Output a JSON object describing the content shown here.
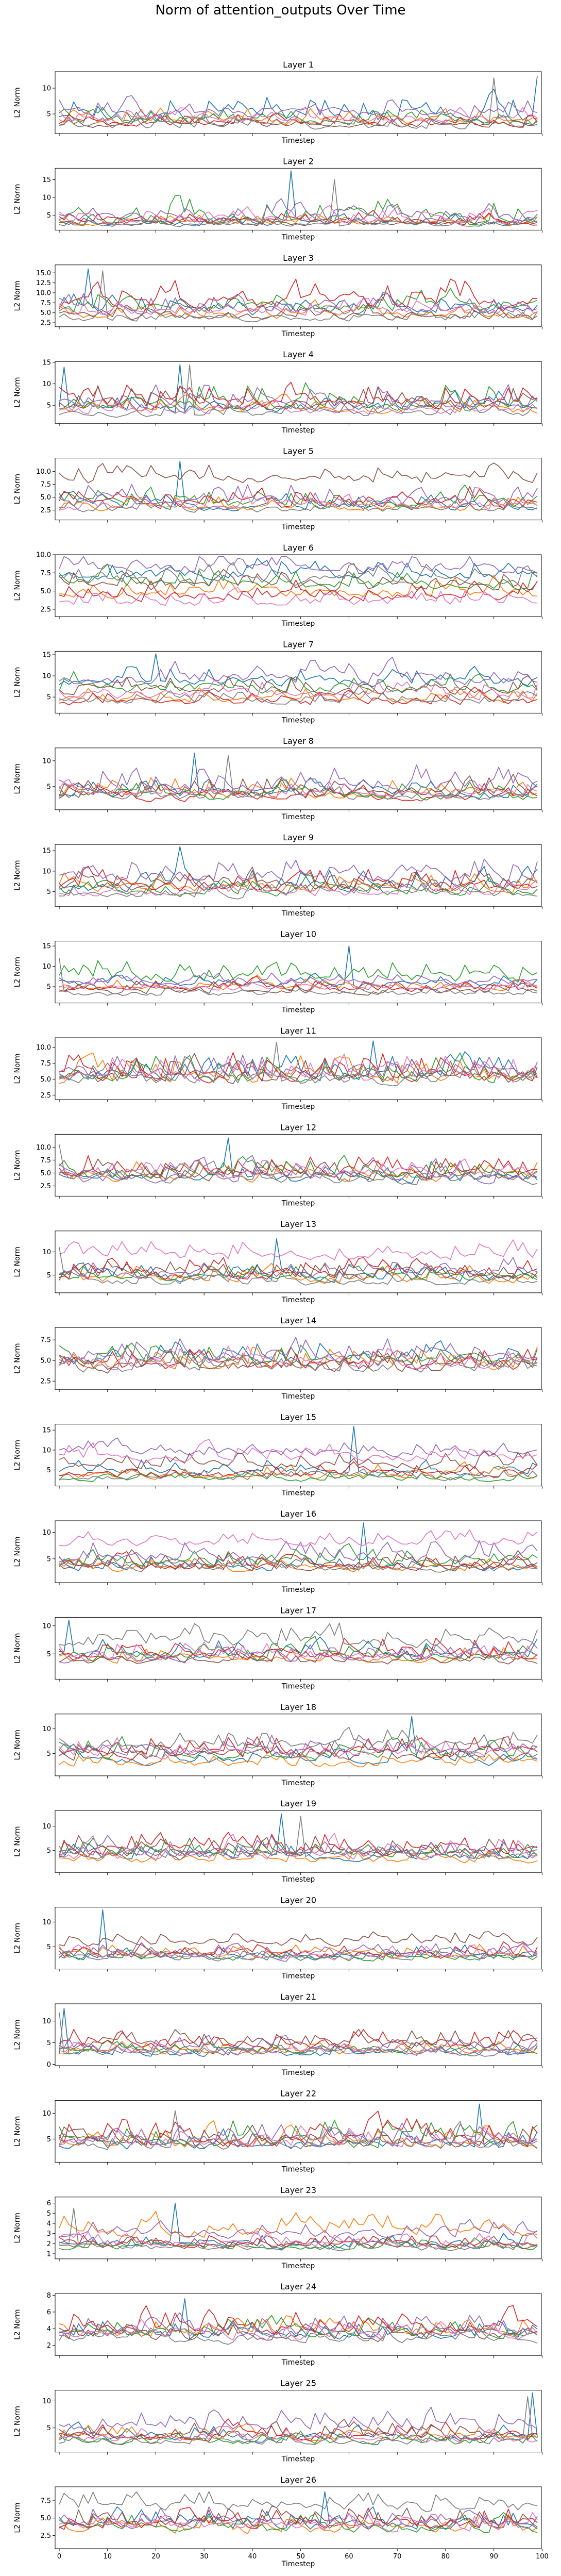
{
  "figure": {
    "title": "Norm of attention_outputs Over Time"
  },
  "palette": [
    "#1f77b4",
    "#ff7f0e",
    "#2ca02c",
    "#d62728",
    "#9467bd",
    "#8c564b",
    "#e377c2",
    "#7f7f7f"
  ],
  "chart_data": [
    {
      "type": "line",
      "title": "Layer 1",
      "xlabel": "Timestep",
      "ylabel": "L2 Norm",
      "xlim": [
        0,
        99
      ],
      "ylim": [
        1.2,
        13.2
      ],
      "yticks": [
        5,
        10
      ],
      "grid": false,
      "legend": "none",
      "n_series": 8,
      "seed": 11,
      "bases": [
        4.3,
        3.5,
        3.6,
        3.1,
        5.1,
        2.8,
        3.9,
        2.5
      ],
      "amps": [
        4.8,
        2.6,
        2.5,
        2.2,
        3.2,
        1.6,
        2.4,
        2.2
      ],
      "spikes": [
        [
          99,
          12.4
        ],
        [
          90,
          12.0
        ]
      ]
    },
    {
      "type": "line",
      "title": "Layer 2",
      "xlabel": "Timestep",
      "ylabel": "L2 Norm",
      "xlim": [
        0,
        99
      ],
      "ylim": [
        0.8,
        18.2
      ],
      "yticks": [
        5,
        10,
        15
      ],
      "grid": false,
      "legend": "none",
      "n_series": 8,
      "seed": 23,
      "bases": [
        2.6,
        2.9,
        3.6,
        2.8,
        4.1,
        2.5,
        3.4,
        2.3
      ],
      "amps": [
        2.5,
        2.6,
        6.0,
        3.0,
        4.5,
        2.0,
        3.5,
        1.8
      ],
      "spikes": [
        [
          48,
          17.5
        ],
        [
          57,
          15.0
        ]
      ]
    },
    {
      "type": "line",
      "title": "Layer 3",
      "xlabel": "Timestep",
      "ylabel": "L2 Norm",
      "xlim": [
        0,
        99
      ],
      "ylim": [
        1.5,
        17.0
      ],
      "yticks": [
        2.5,
        5.0,
        7.5,
        10.0,
        12.5,
        15.0
      ],
      "grid": false,
      "legend": "none",
      "n_series": 8,
      "seed": 37,
      "bases": [
        5.2,
        4.4,
        6.1,
        7.3,
        5.5,
        4.0,
        5.0,
        3.4
      ],
      "amps": [
        4.5,
        3.5,
        5.0,
        6.0,
        4.5,
        3.5,
        3.5,
        2.5
      ],
      "spikes": [
        [
          6,
          16.0
        ],
        [
          9,
          15.5
        ]
      ]
    },
    {
      "type": "line",
      "title": "Layer 4",
      "xlabel": "Timestep",
      "ylabel": "L2 Norm",
      "xlim": [
        0,
        99
      ],
      "ylim": [
        0.8,
        15.2
      ],
      "yticks": [
        5,
        10,
        15
      ],
      "grid": false,
      "legend": "none",
      "n_series": 8,
      "seed": 41,
      "bases": [
        4.5,
        3.8,
        5.2,
        5.5,
        5.0,
        5.1,
        3.6,
        3.0
      ],
      "amps": [
        4.0,
        3.0,
        5.5,
        5.0,
        5.0,
        5.0,
        3.0,
        2.5
      ],
      "spikes": [
        [
          25,
          14.5
        ],
        [
          27,
          14.4
        ],
        [
          1,
          13.9
        ]
      ]
    },
    {
      "type": "line",
      "title": "Layer 5",
      "xlabel": "Timestep",
      "ylabel": "L2 Norm",
      "xlim": [
        0,
        99
      ],
      "ylim": [
        0.6,
        12.6
      ],
      "yticks": [
        2.5,
        5.0,
        7.5,
        10.0
      ],
      "grid": false,
      "legend": "none",
      "n_series": 8,
      "seed": 53,
      "bases": [
        3.1,
        3.0,
        3.7,
        3.8,
        4.0,
        8.2,
        3.2,
        2.5
      ],
      "amps": [
        2.5,
        2.8,
        3.5,
        3.5,
        3.8,
        3.2,
        2.5,
        2.0
      ],
      "spikes": [
        [
          25,
          12.0
        ]
      ]
    },
    {
      "type": "line",
      "title": "Layer 6",
      "xlabel": "Timestep",
      "ylabel": "L2 Norm",
      "xlim": [
        0,
        99
      ],
      "ylim": [
        1.5,
        10.0
      ],
      "yticks": [
        2.5,
        5.0,
        7.5,
        10.0
      ],
      "grid": false,
      "legend": "none",
      "n_series": 8,
      "seed": 67,
      "bases": [
        7.2,
        4.6,
        5.9,
        4.3,
        8.1,
        5.4,
        3.3,
        6.4
      ],
      "amps": [
        2.4,
        2.4,
        2.4,
        2.4,
        2.4,
        2.4,
        2.0,
        2.4
      ],
      "spikes": []
    },
    {
      "type": "line",
      "title": "Layer 7",
      "xlabel": "Timestep",
      "ylabel": "L2 Norm",
      "xlim": [
        0,
        99
      ],
      "ylim": [
        1.2,
        15.8
      ],
      "yticks": [
        5,
        10,
        15
      ],
      "grid": false,
      "legend": "none",
      "n_series": 8,
      "seed": 71,
      "bases": [
        8.5,
        4.3,
        7.0,
        3.8,
        9.0,
        6.5,
        5.5,
        4.0
      ],
      "amps": [
        4.0,
        3.0,
        4.0,
        3.0,
        4.5,
        4.0,
        4.0,
        2.5
      ],
      "spikes": [
        [
          20,
          15.2
        ]
      ]
    },
    {
      "type": "line",
      "title": "Layer 8",
      "xlabel": "Timestep",
      "ylabel": "L2 Norm",
      "xlim": [
        0,
        99
      ],
      "ylim": [
        0.5,
        12.5
      ],
      "yticks": [
        5,
        10
      ],
      "grid": false,
      "legend": "none",
      "n_series": 8,
      "seed": 83,
      "bases": [
        3.4,
        3.6,
        3.1,
        3.0,
        5.3,
        4.0,
        3.5,
        3.0
      ],
      "amps": [
        3.0,
        3.5,
        3.0,
        2.8,
        4.5,
        3.5,
        3.0,
        2.5
      ],
      "spikes": [
        [
          28,
          11.5
        ],
        [
          35,
          11.0
        ]
      ]
    },
    {
      "type": "line",
      "title": "Layer 9",
      "xlabel": "Timestep",
      "ylabel": "L2 Norm",
      "xlim": [
        0,
        99
      ],
      "ylim": [
        1.4,
        16.5
      ],
      "yticks": [
        5,
        10,
        15
      ],
      "grid": false,
      "legend": "none",
      "n_series": 8,
      "seed": 97,
      "bases": [
        6.1,
        5.9,
        5.0,
        6.2,
        8.6,
        6.0,
        4.5,
        4.2
      ],
      "amps": [
        4.5,
        4.0,
        4.0,
        5.0,
        5.0,
        4.5,
        3.0,
        3.0
      ],
      "spikes": [
        [
          25,
          16.0
        ]
      ]
    },
    {
      "type": "line",
      "title": "Layer 10",
      "xlabel": "Timestep",
      "ylabel": "L2 Norm",
      "xlim": [
        0,
        99
      ],
      "ylim": [
        1.0,
        16.2
      ],
      "yticks": [
        5,
        10,
        15
      ],
      "grid": false,
      "legend": "none",
      "n_series": 8,
      "seed": 101,
      "bases": [
        5.4,
        4.9,
        7.1,
        4.4,
        6.0,
        3.8,
        4.6,
        3.2
      ],
      "amps": [
        2.5,
        2.5,
        5.0,
        2.5,
        2.5,
        2.5,
        2.5,
        2.0
      ],
      "spikes": [
        [
          60,
          15.0
        ],
        [
          0,
          12.0
        ]
      ]
    },
    {
      "type": "line",
      "title": "Layer 11",
      "xlabel": "Timestep",
      "ylabel": "L2 Norm",
      "xlim": [
        0,
        99
      ],
      "ylim": [
        1.8,
        11.5
      ],
      "yticks": [
        2.5,
        5.0,
        7.5,
        10.0
      ],
      "grid": false,
      "legend": "none",
      "n_series": 8,
      "seed": 113,
      "bases": [
        5.4,
        5.1,
        5.3,
        5.4,
        6.0,
        5.0,
        5.3,
        4.7
      ],
      "amps": [
        3.5,
        3.5,
        3.5,
        4.0,
        3.5,
        3.5,
        3.5,
        3.0
      ],
      "spikes": [
        [
          65,
          11.0
        ],
        [
          45,
          10.8
        ]
      ]
    },
    {
      "type": "line",
      "title": "Layer 12",
      "xlabel": "Timestep",
      "ylabel": "L2 Norm",
      "xlim": [
        0,
        99
      ],
      "ylim": [
        0.5,
        12.5
      ],
      "yticks": [
        2.5,
        5.0,
        7.5,
        10.0
      ],
      "grid": false,
      "legend": "none",
      "n_series": 8,
      "seed": 127,
      "bases": [
        3.8,
        4.2,
        4.6,
        5.0,
        4.0,
        4.4,
        4.8,
        3.5
      ],
      "amps": [
        3.5,
        3.5,
        3.5,
        4.0,
        3.5,
        3.5,
        3.5,
        3.0
      ],
      "spikes": [
        [
          35,
          11.8
        ],
        [
          0,
          10.5
        ]
      ]
    },
    {
      "type": "line",
      "title": "Layer 13",
      "xlabel": "Timestep",
      "ylabel": "L2 Norm",
      "xlim": [
        0,
        99
      ],
      "ylim": [
        1.2,
        14.5
      ],
      "yticks": [
        5,
        10
      ],
      "grid": false,
      "legend": "none",
      "n_series": 8,
      "seed": 131,
      "bases": [
        4.3,
        4.0,
        4.5,
        5.0,
        5.2,
        4.6,
        9.0,
        3.4
      ],
      "amps": [
        3.0,
        3.0,
        3.0,
        4.0,
        3.5,
        3.5,
        3.5,
        2.5
      ],
      "spikes": [
        [
          45,
          12.8
        ],
        [
          0,
          11.0
        ]
      ]
    },
    {
      "type": "line",
      "title": "Layer 14",
      "xlabel": "Timestep",
      "ylabel": "L2 Norm",
      "xlim": [
        0,
        99
      ],
      "ylim": [
        1.5,
        9.0
      ],
      "yticks": [
        2.5,
        5.0,
        7.5
      ],
      "grid": false,
      "legend": "none",
      "n_series": 8,
      "seed": 139,
      "bases": [
        5.0,
        4.5,
        4.9,
        4.4,
        5.3,
        4.1,
        4.6,
        4.0
      ],
      "amps": [
        2.5,
        2.5,
        2.5,
        2.5,
        2.5,
        2.5,
        2.5,
        2.0
      ],
      "spikes": []
    },
    {
      "type": "line",
      "title": "Layer 15",
      "xlabel": "Timestep",
      "ylabel": "L2 Norm",
      "xlim": [
        0,
        99
      ],
      "ylim": [
        1.0,
        16.5
      ],
      "yticks": [
        5,
        10,
        15
      ],
      "grid": false,
      "legend": "none",
      "n_series": 8,
      "seed": 149,
      "bases": [
        4.6,
        3.6,
        2.6,
        3.8,
        9.4,
        6.0,
        8.0,
        3.0
      ],
      "amps": [
        3.5,
        3.0,
        2.0,
        3.0,
        3.5,
        3.5,
        3.5,
        2.5
      ],
      "spikes": [
        [
          61,
          16.0
        ]
      ]
    },
    {
      "type": "line",
      "title": "Layer 16",
      "xlabel": "Timestep",
      "ylabel": "L2 Norm",
      "xlim": [
        0,
        99
      ],
      "ylim": [
        0.5,
        12.2
      ],
      "yticks": [
        5,
        10
      ],
      "grid": false,
      "legend": "none",
      "n_series": 8,
      "seed": 157,
      "bases": [
        3.3,
        3.2,
        4.2,
        3.4,
        5.2,
        3.5,
        8.0,
        3.1
      ],
      "amps": [
        2.5,
        2.5,
        2.8,
        2.5,
        3.5,
        3.0,
        2.5,
        2.5
      ],
      "spikes": [
        [
          63,
          11.8
        ]
      ]
    },
    {
      "type": "line",
      "title": "Layer 17",
      "xlabel": "Timestep",
      "ylabel": "L2 Norm",
      "xlim": [
        0,
        99
      ],
      "ylim": [
        0.5,
        11.5
      ],
      "yticks": [
        5,
        10
      ],
      "grid": false,
      "legend": "none",
      "n_series": 8,
      "seed": 163,
      "bases": [
        4.9,
        4.0,
        4.4,
        5.0,
        4.2,
        3.8,
        4.4,
        6.9
      ],
      "amps": [
        3.0,
        2.5,
        3.0,
        3.5,
        3.0,
        2.5,
        3.0,
        3.5
      ],
      "spikes": [
        [
          2,
          11.0
        ],
        [
          58,
          10.5
        ]
      ]
    },
    {
      "type": "line",
      "title": "Layer 18",
      "xlabel": "Timestep",
      "ylabel": "L2 Norm",
      "xlim": [
        0,
        99
      ],
      "ylim": [
        0.5,
        13.0
      ],
      "yticks": [
        5,
        10
      ],
      "grid": false,
      "legend": "none",
      "n_series": 8,
      "seed": 173,
      "bases": [
        3.4,
        3.0,
        4.6,
        4.9,
        5.6,
        4.4,
        4.8,
        6.4
      ],
      "amps": [
        3.0,
        2.5,
        3.5,
        4.0,
        3.5,
        3.5,
        3.5,
        4.0
      ],
      "spikes": [
        [
          73,
          12.5
        ]
      ]
    },
    {
      "type": "line",
      "title": "Layer 19",
      "xlabel": "Timestep",
      "ylabel": "L2 Norm",
      "xlim": [
        0,
        99
      ],
      "ylim": [
        0.5,
        13.2
      ],
      "yticks": [
        5,
        10
      ],
      "grid": false,
      "legend": "none",
      "n_series": 8,
      "seed": 181,
      "bases": [
        3.6,
        3.1,
        4.3,
        4.8,
        4.6,
        4.5,
        4.0,
        3.8
      ],
      "amps": [
        3.0,
        2.5,
        3.5,
        4.0,
        3.5,
        4.0,
        4.0,
        3.0
      ],
      "spikes": [
        [
          46,
          12.5
        ],
        [
          50,
          12.0
        ]
      ]
    },
    {
      "type": "line",
      "title": "Layer 20",
      "xlabel": "Timestep",
      "ylabel": "L2 Norm",
      "xlim": [
        0,
        99
      ],
      "ylim": [
        0.5,
        13.0
      ],
      "yticks": [
        5,
        10
      ],
      "grid": false,
      "legend": "none",
      "n_series": 8,
      "seed": 191,
      "bases": [
        3.0,
        3.2,
        2.6,
        3.4,
        3.2,
        5.7,
        3.0,
        2.7
      ],
      "amps": [
        2.5,
        2.5,
        2.0,
        3.0,
        2.5,
        2.5,
        2.5,
        2.0
      ],
      "spikes": [
        [
          9,
          12.5
        ]
      ]
    },
    {
      "type": "line",
      "title": "Layer 21",
      "xlabel": "Timestep",
      "ylabel": "L2 Norm",
      "xlim": [
        0,
        99
      ],
      "ylim": [
        -0.3,
        14.0
      ],
      "yticks": [
        0,
        5,
        10
      ],
      "grid": false,
      "legend": "none",
      "n_series": 8,
      "seed": 199,
      "bases": [
        2.4,
        2.8,
        3.0,
        4.4,
        3.3,
        4.5,
        2.9,
        2.3
      ],
      "amps": [
        2.5,
        2.5,
        2.5,
        4.0,
        3.0,
        3.5,
        2.5,
        2.0
      ],
      "spikes": [
        [
          1,
          13.0
        ],
        [
          0,
          12.0
        ]
      ]
    },
    {
      "type": "line",
      "title": "Layer 22",
      "xlabel": "Timestep",
      "ylabel": "L2 Norm",
      "xlim": [
        0,
        99
      ],
      "ylim": [
        0.5,
        12.5
      ],
      "yticks": [
        5,
        10
      ],
      "grid": false,
      "legend": "none",
      "n_series": 8,
      "seed": 211,
      "bases": [
        3.8,
        4.0,
        4.4,
        4.6,
        4.4,
        4.2,
        4.3,
        3.7
      ],
      "amps": [
        3.5,
        3.5,
        4.5,
        4.5,
        3.5,
        3.5,
        3.5,
        3.0
      ],
      "spikes": [
        [
          87,
          11.8
        ],
        [
          24,
          10.5
        ]
      ]
    },
    {
      "type": "line",
      "title": "Layer 23",
      "xlabel": "Timestep",
      "ylabel": "L2 Norm",
      "xlim": [
        0,
        99
      ],
      "ylim": [
        0.5,
        6.6
      ],
      "yticks": [
        1,
        2,
        3,
        4,
        5,
        6
      ],
      "grid": false,
      "legend": "none",
      "n_series": 8,
      "seed": 223,
      "bases": [
        1.8,
        3.1,
        1.6,
        1.9,
        2.9,
        1.7,
        1.9,
        1.5
      ],
      "amps": [
        1.3,
        1.8,
        1.0,
        1.2,
        1.5,
        1.0,
        1.2,
        1.0
      ],
      "spikes": [
        [
          24,
          6.0
        ],
        [
          3,
          5.5
        ]
      ]
    },
    {
      "type": "line",
      "title": "Layer 24",
      "xlabel": "Timestep",
      "ylabel": "L2 Norm",
      "xlim": [
        0,
        99
      ],
      "ylim": [
        0.8,
        8.2
      ],
      "yticks": [
        2,
        4,
        6,
        8
      ],
      "grid": false,
      "legend": "none",
      "n_series": 8,
      "seed": 227,
      "bases": [
        3.3,
        3.5,
        3.3,
        4.0,
        3.6,
        3.0,
        3.1,
        2.6
      ],
      "amps": [
        2.0,
        2.0,
        2.0,
        2.5,
        2.2,
        2.0,
        2.0,
        1.6
      ],
      "spikes": [
        [
          26,
          7.6
        ]
      ]
    },
    {
      "type": "line",
      "title": "Layer 25",
      "xlabel": "Timestep",
      "ylabel": "L2 Norm",
      "xlim": [
        0,
        99
      ],
      "ylim": [
        0.5,
        12.0
      ],
      "yticks": [
        5,
        10
      ],
      "grid": false,
      "legend": "none",
      "n_series": 8,
      "seed": 233,
      "bases": [
        3.0,
        3.2,
        2.3,
        3.3,
        5.0,
        3.4,
        2.8,
        2.4
      ],
      "amps": [
        2.5,
        2.5,
        2.0,
        2.8,
        3.5,
        2.8,
        2.5,
        2.0
      ],
      "spikes": [
        [
          98,
          11.5
        ],
        [
          97,
          10.8
        ]
      ]
    },
    {
      "type": "line",
      "title": "Layer 26",
      "xlabel": "Timestep",
      "ylabel": "L2 Norm",
      "xlim": [
        0,
        99
      ],
      "ylim": [
        0.6,
        9.5
      ],
      "yticks": [
        2.5,
        5.0,
        7.5
      ],
      "grid": false,
      "legend": "none",
      "n_series": 8,
      "seed": 239,
      "bases": [
        3.8,
        3.3,
        3.5,
        4.0,
        4.2,
        4.1,
        3.6,
        6.5
      ],
      "amps": [
        2.5,
        2.2,
        2.4,
        2.8,
        2.8,
        2.7,
        2.4,
        2.5
      ],
      "spikes": [
        [
          55,
          8.8
        ]
      ]
    }
  ],
  "shared_x": {
    "ticks": [
      0,
      10,
      20,
      30,
      40,
      50,
      60,
      70,
      80,
      90,
      100
    ],
    "label": "Timestep"
  }
}
